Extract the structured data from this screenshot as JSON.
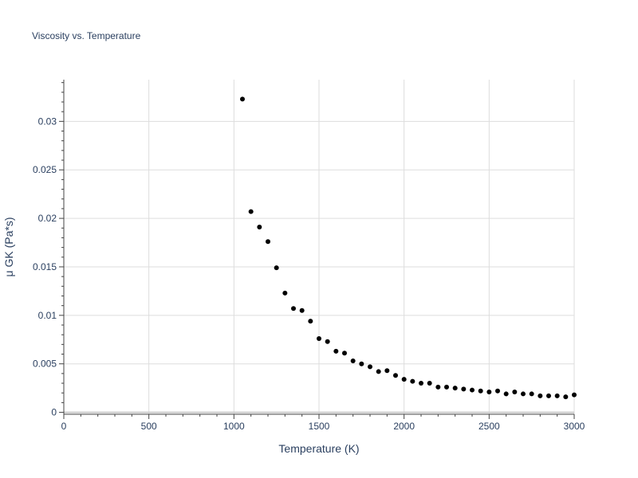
{
  "chart_data": {
    "type": "scatter",
    "title": "Viscosity vs. Temperature",
    "xlabel": "Temperature (K)",
    "ylabel": "μ GK (Pa*s)",
    "xlim": [
      0,
      3000
    ],
    "ylim": [
      -0.0002,
      0.0343
    ],
    "x_ticks": [
      0,
      500,
      1000,
      1500,
      2000,
      2500,
      3000
    ],
    "x_tick_labels": [
      "0",
      "500",
      "1000",
      "1500",
      "2000",
      "2500",
      "3000"
    ],
    "y_ticks": [
      0,
      0.005,
      0.01,
      0.015,
      0.02,
      0.025,
      0.03
    ],
    "y_tick_labels": [
      "0",
      "0.005",
      "0.01",
      "0.015",
      "0.02",
      "0.025",
      "0.03"
    ],
    "grid": true,
    "marker_color": "#000000",
    "series": [
      {
        "x": [
          1050,
          1100,
          1150,
          1200,
          1250,
          1300,
          1350,
          1400,
          1450,
          1500,
          1550,
          1600,
          1650,
          1700,
          1750,
          1800,
          1850,
          1900,
          1950,
          2000,
          2050,
          2100,
          2150,
          2200,
          2250,
          2300,
          2350,
          2400,
          2450,
          2500,
          2550,
          2600,
          2650,
          2700,
          2750,
          2800,
          2850,
          2900,
          2950,
          3000
        ],
        "y": [
          0.0323,
          0.0207,
          0.0191,
          0.0176,
          0.0149,
          0.0123,
          0.0107,
          0.0105,
          0.0094,
          0.0076,
          0.0073,
          0.0063,
          0.0061,
          0.0053,
          0.005,
          0.0047,
          0.0042,
          0.0043,
          0.0038,
          0.0034,
          0.0032,
          0.003,
          0.003,
          0.0026,
          0.0026,
          0.0025,
          0.0024,
          0.0023,
          0.0022,
          0.0021,
          0.0022,
          0.0019,
          0.0021,
          0.0019,
          0.0019,
          0.0017,
          0.0017,
          0.0017,
          0.0016,
          0.0018
        ]
      }
    ]
  }
}
